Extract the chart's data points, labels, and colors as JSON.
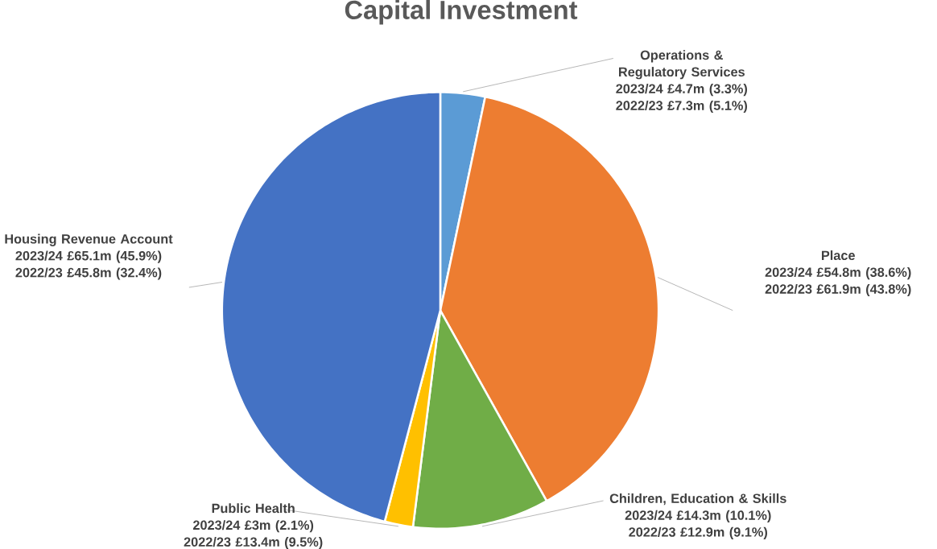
{
  "chart_data": {
    "type": "pie",
    "title": "Capital Investment",
    "categories": [
      "Operations & Regulatory Services",
      "Place",
      "Children, Education & Skills",
      "Public Health",
      "Housing Revenue Account"
    ],
    "values": [
      3.3,
      38.6,
      10.1,
      2.1,
      45.9
    ],
    "colors": [
      "#5b9bd5",
      "#ed7d31",
      "#70ad47",
      "#ffc000",
      "#4472c4"
    ],
    "value_labels": [
      "2023/24 £4.7m (3.3%)",
      "2023/24 £54.8m (38.6%)",
      "2023/24 £14.3m (10.1%)",
      "2023/24 £3m (2.1%)",
      "2023/24 £65.1m (45.9%)"
    ],
    "annotations": [
      "2022/23 £7.3m (5.1%)",
      "2022/23 £61.9m (43.8%)",
      "2022/23 £12.9m (9.1%)",
      "2022/23 £13.4m (9.5%)",
      "2022/23 £45.8m (32.4%)"
    ]
  }
}
